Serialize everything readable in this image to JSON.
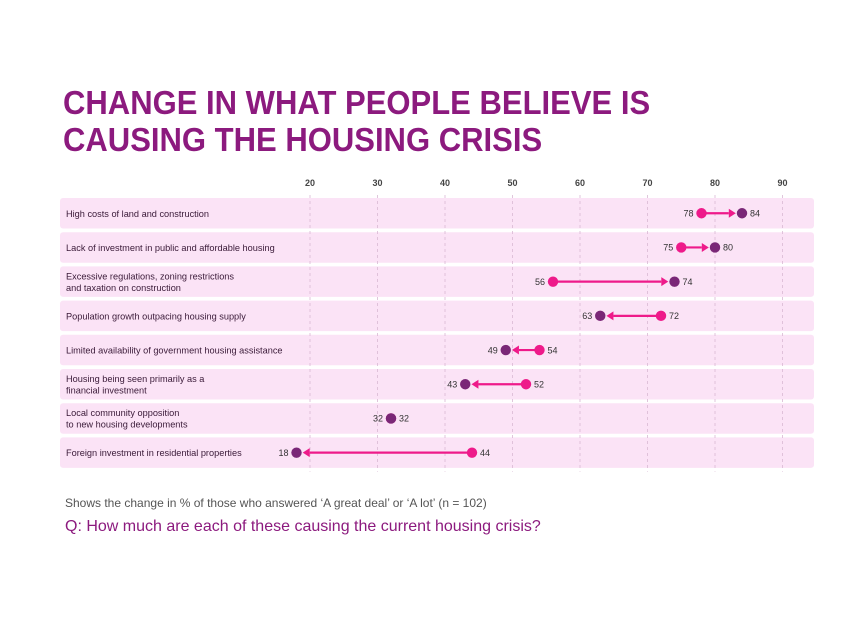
{
  "title_lines": [
    "CHANGE IN WHAT PEOPLE BELIEVE IS",
    "CAUSING THE HOUSING CRISIS"
  ],
  "footnote": "Shows the change in % of those who answered ‘A great deal’ or ‘A lot’ (n = 102)",
  "question": "Q: How much are each of these causing the current housing crisis?",
  "colors": {
    "from_point": "#ee1a8a",
    "to_point": "#7a2777",
    "arrow": "#ee1a8a",
    "row_band": "#fbe3f6",
    "title": "#8c1a7e",
    "grid": "#d9b8d4"
  },
  "chart_data": {
    "type": "dumbbell",
    "xlim": [
      18,
      90
    ],
    "xticks": [
      "20",
      "30",
      "40",
      "50",
      "60",
      "70",
      "80",
      "90"
    ],
    "series": [
      {
        "name": "from",
        "color": "#ee1a8a"
      },
      {
        "name": "to",
        "color": "#7a2777"
      }
    ],
    "rows": [
      {
        "label_lines": [
          "High costs of land and construction"
        ],
        "from": 78,
        "to": 84,
        "from_label": "78",
        "to_label": "84"
      },
      {
        "label_lines": [
          "Lack of investment in public and affordable housing"
        ],
        "from": 75,
        "to": 80,
        "from_label": "75",
        "to_label": "80"
      },
      {
        "label_lines": [
          "Excessive regulations, zoning restrictions",
          "and taxation on construction"
        ],
        "from": 56,
        "to": 74,
        "from_label": "56",
        "to_label": "74"
      },
      {
        "label_lines": [
          "Population growth outpacing housing supply"
        ],
        "from": 72,
        "to": 63,
        "from_label": "72",
        "to_label": "63"
      },
      {
        "label_lines": [
          "Limited availability of government housing assistance"
        ],
        "from": 54,
        "to": 49,
        "from_label": "54",
        "to_label": "49"
      },
      {
        "label_lines": [
          "Housing being seen primarily as a",
          "financial investment"
        ],
        "from": 52,
        "to": 43,
        "from_label": "52",
        "to_label": "43"
      },
      {
        "label_lines": [
          "Local community opposition",
          "to new housing developments"
        ],
        "from": 32,
        "to": 32,
        "from_label": "32",
        "to_label": "32"
      },
      {
        "label_lines": [
          "Foreign investment in residential properties"
        ],
        "from": 44,
        "to": 18,
        "from_label": "44",
        "to_label": "18"
      }
    ]
  }
}
